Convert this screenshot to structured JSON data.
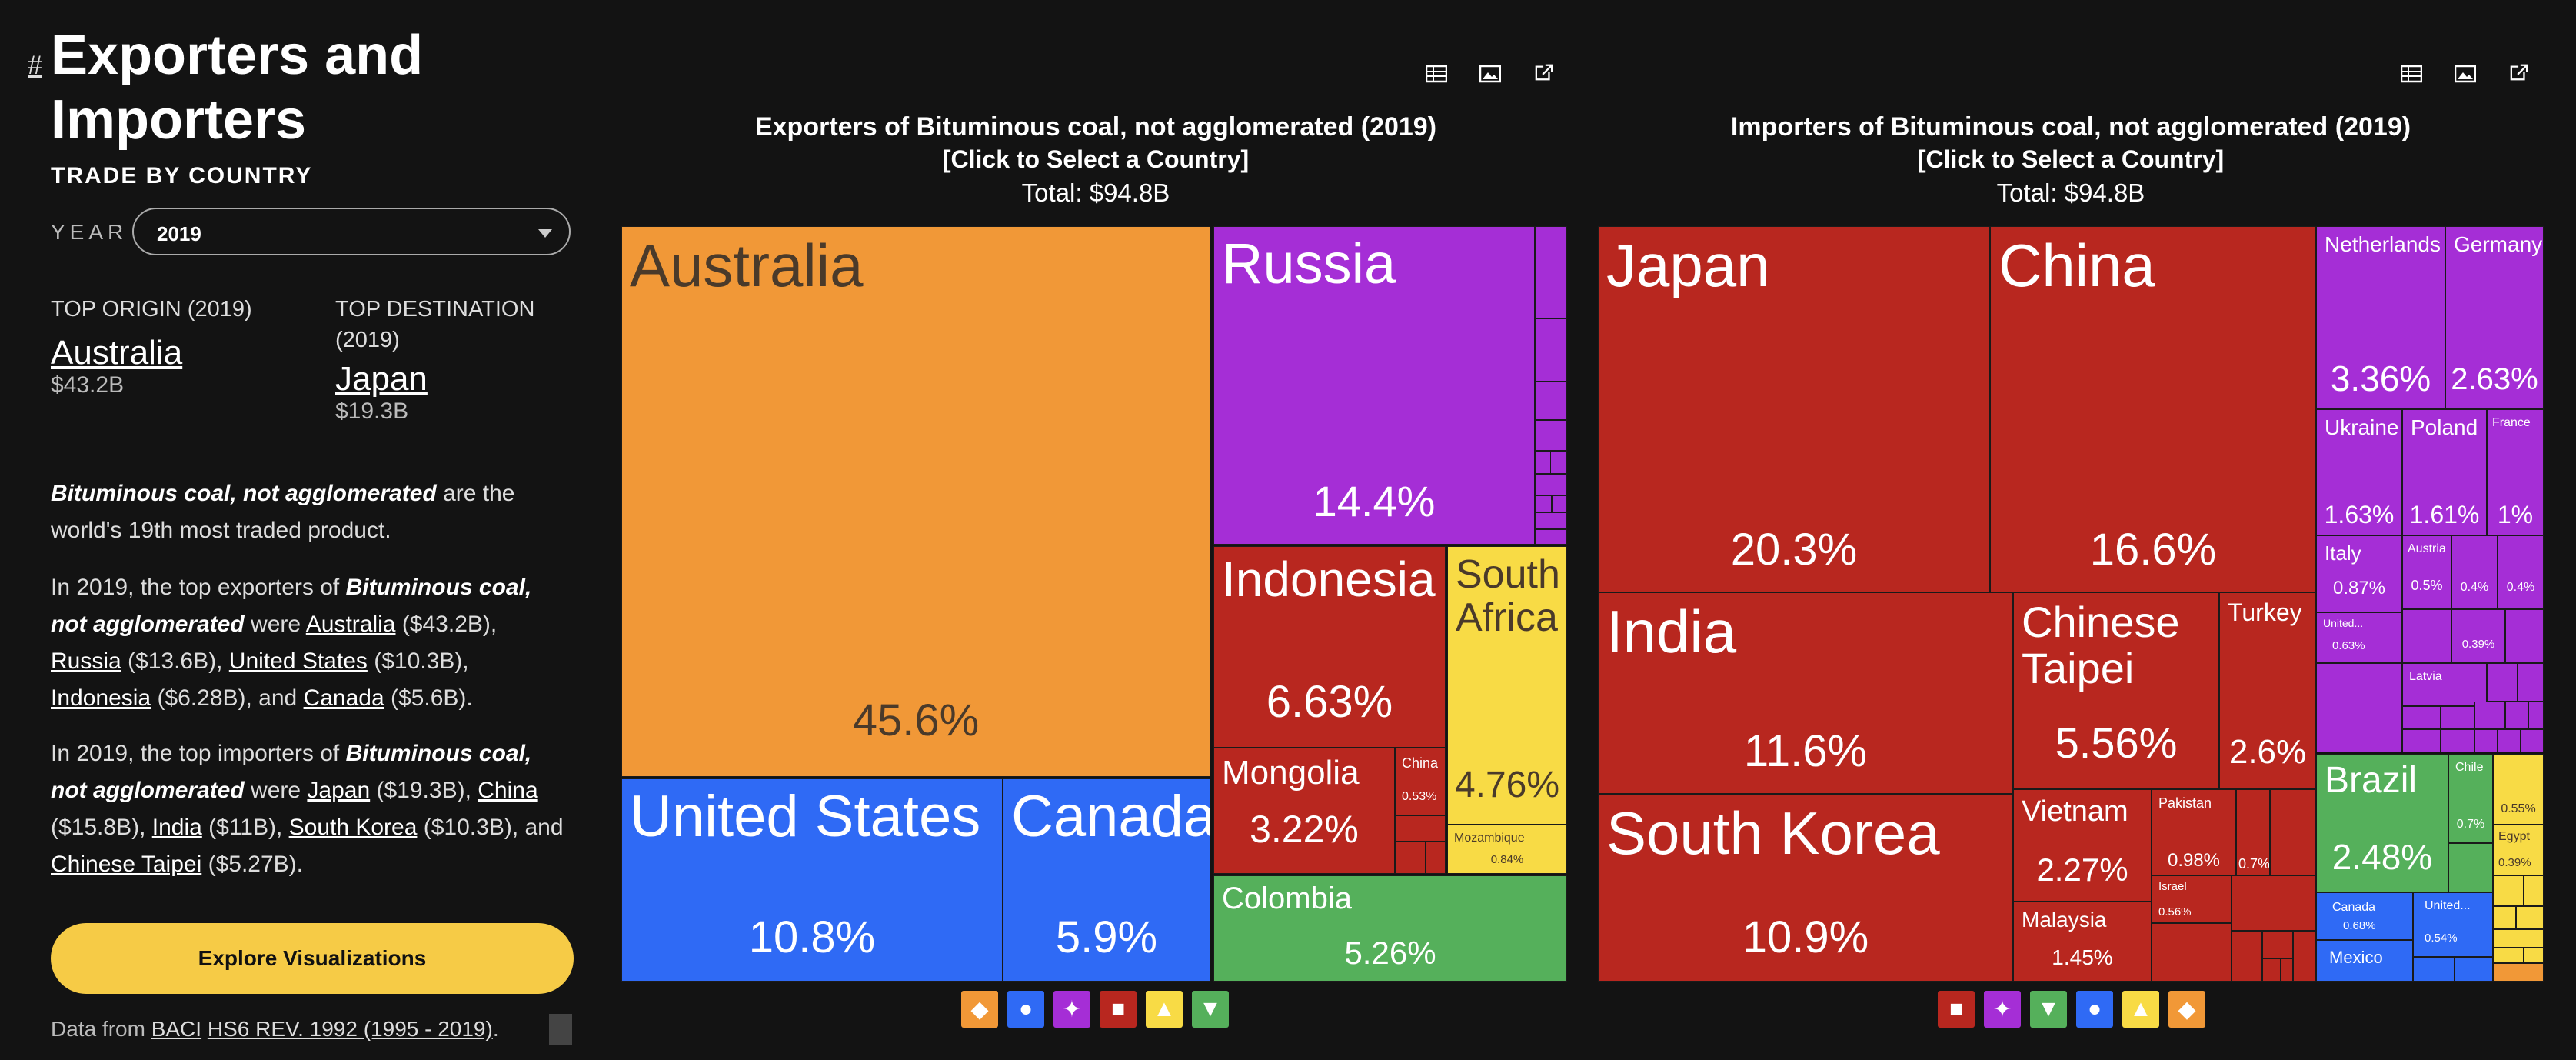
{
  "page": {
    "anchor": "#",
    "title": "Exporters and Importers",
    "subtitle": "TRADE BY COUNTRY",
    "year_label": "YEAR",
    "year_value": "2019"
  },
  "top_origin": {
    "label": "TOP ORIGIN (2019)",
    "country": "Australia",
    "amount": "$43.2B"
  },
  "top_destination": {
    "label": "TOP DESTINATION (2019)",
    "country": "Japan",
    "amount": "$19.3B"
  },
  "description": {
    "p1_product": "Bituminous coal, not agglomerated",
    "p1_text": "are the world's 19th most traded product.",
    "p2_intro": "In 2019, the top exporters of",
    "p2_product": "Bituminous coal, not agglomerated",
    "p2_were": "were",
    "p2_items": [
      {
        "name": "Australia",
        "val": "($43.2B), "
      },
      {
        "name": "Russia",
        "val": "($13.6B), "
      },
      {
        "name": "United States",
        "val": "($10.3B), "
      },
      {
        "name": "Indonesia",
        "val": "($6.28B), and "
      },
      {
        "name": "Canada",
        "val": "($5.6B)."
      }
    ],
    "p3_intro": "In 2019, the top importers of",
    "p3_product": "Bituminous coal, not agglomerated",
    "p3_were": "were",
    "p3_items": [
      {
        "name": "Japan",
        "val": "($19.3B), "
      },
      {
        "name": "China",
        "val": "($15.8B), "
      },
      {
        "name": "India",
        "val": "($11B), "
      },
      {
        "name": "South Korea",
        "val": "($10.3B), and "
      },
      {
        "name": "Chinese Taipei",
        "val": "($5.27B)."
      }
    ]
  },
  "explore_button": "Explore Visualizations",
  "source": {
    "prefix": "Data from ",
    "link1": "BACI",
    "link2": "HS6 REV. 1992 (1995 - 2019)",
    "suffix": "."
  },
  "toolbar_icons": [
    "table-icon",
    "image-icon",
    "share-icon"
  ],
  "exporters_chart": {
    "title": "Exporters of Bituminous coal, not agglomerated (2019)",
    "subtitle": "[Click to Select a Country]",
    "total": "Total: $94.8B"
  },
  "importers_chart": {
    "title": "Importers of Bituminous coal, not agglomerated (2019)",
    "subtitle": "[Click to Select a Country]",
    "total": "Total: $94.8B"
  },
  "colors": {
    "oceania": "#f19837",
    "europe": "#a52ed6",
    "asia": "#b8271f",
    "north_america": "#2f6af5",
    "africa": "#f8db45",
    "south_america": "#55b05b",
    "button": "#f6cb46",
    "background": "#131313"
  },
  "chart_data": [
    {
      "type": "treemap",
      "title": "Exporters of Bituminous coal, not agglomerated (2019)",
      "total": "$94.8B",
      "items": [
        {
          "name": "Australia",
          "share": 45.6,
          "label": "45.6%",
          "region": "oceania"
        },
        {
          "name": "Russia",
          "share": 14.4,
          "label": "14.4%",
          "region": "europe"
        },
        {
          "name": "United States",
          "share": 10.8,
          "label": "10.8%",
          "region": "north_america"
        },
        {
          "name": "Indonesia",
          "share": 6.63,
          "label": "6.63%",
          "region": "asia"
        },
        {
          "name": "Canada",
          "share": 5.9,
          "label": "5.9%",
          "region": "north_america"
        },
        {
          "name": "Colombia",
          "share": 5.26,
          "label": "5.26%",
          "region": "south_america"
        },
        {
          "name": "South Africa",
          "share": 4.76,
          "label": "4.76%",
          "region": "africa"
        },
        {
          "name": "Mongolia",
          "share": 3.22,
          "label": "3.22%",
          "region": "asia"
        },
        {
          "name": "Mozambique",
          "share": 0.84,
          "label": "0.84%",
          "region": "africa"
        },
        {
          "name": "China",
          "share": 0.53,
          "label": "0.53%",
          "region": "asia"
        }
      ],
      "legend": [
        "oceania",
        "north_america",
        "europe",
        "asia",
        "africa",
        "south_america"
      ]
    },
    {
      "type": "treemap",
      "title": "Importers of Bituminous coal, not agglomerated (2019)",
      "total": "$94.8B",
      "items": [
        {
          "name": "Japan",
          "share": 20.3,
          "label": "20.3%",
          "region": "asia"
        },
        {
          "name": "China",
          "share": 16.6,
          "label": "16.6%",
          "region": "asia"
        },
        {
          "name": "India",
          "share": 11.6,
          "label": "11.6%",
          "region": "asia"
        },
        {
          "name": "South Korea",
          "share": 10.9,
          "label": "10.9%",
          "region": "asia"
        },
        {
          "name": "Chinese Taipei",
          "share": 5.56,
          "label": "5.56%",
          "region": "asia"
        },
        {
          "name": "Netherlands",
          "share": 3.36,
          "label": "3.36%",
          "region": "europe"
        },
        {
          "name": "Germany",
          "share": 2.63,
          "label": "2.63%",
          "region": "europe"
        },
        {
          "name": "Turkey",
          "share": 2.6,
          "label": "2.6%",
          "region": "asia"
        },
        {
          "name": "Brazil",
          "share": 2.48,
          "label": "2.48%",
          "region": "south_america"
        },
        {
          "name": "Vietnam",
          "share": 2.27,
          "label": "2.27%",
          "region": "asia"
        },
        {
          "name": "Ukraine",
          "share": 1.63,
          "label": "1.63%",
          "region": "europe"
        },
        {
          "name": "Poland",
          "share": 1.61,
          "label": "1.61%",
          "region": "europe"
        },
        {
          "name": "Malaysia",
          "share": 1.45,
          "label": "1.45%",
          "region": "asia"
        },
        {
          "name": "France",
          "share": 1.0,
          "label": "1%",
          "region": "europe"
        },
        {
          "name": "Pakistan",
          "share": 0.98,
          "label": "0.98%",
          "region": "asia"
        },
        {
          "name": "Italy",
          "share": 0.87,
          "label": "0.87%",
          "region": "europe"
        },
        {
          "name": "Chile",
          "share": 0.7,
          "label": "0.7%",
          "region": "south_america"
        },
        {
          "name": "",
          "share": 0.7,
          "label": "0.7%",
          "region": "asia"
        },
        {
          "name": "Canada",
          "share": 0.68,
          "label": "0.68%",
          "region": "north_america"
        },
        {
          "name": "United...",
          "share": 0.63,
          "label": "0.63%",
          "region": "europe"
        },
        {
          "name": "Israel",
          "share": 0.56,
          "label": "0.56%",
          "region": "asia"
        },
        {
          "name": "",
          "share": 0.55,
          "label": "0.55%",
          "region": "africa"
        },
        {
          "name": "United...",
          "share": 0.54,
          "label": "0.54%",
          "region": "north_america"
        },
        {
          "name": "Austria",
          "share": 0.5,
          "label": "0.5%",
          "region": "europe"
        },
        {
          "name": "",
          "share": 0.4,
          "label": "0.4%",
          "region": "europe"
        },
        {
          "name": "",
          "share": 0.4,
          "label": "0.4%",
          "region": "europe"
        },
        {
          "name": "Egypt",
          "share": 0.39,
          "label": "0.39%",
          "region": "africa"
        },
        {
          "name": "",
          "share": 0.39,
          "label": "0.39%",
          "region": "europe"
        },
        {
          "name": "Latvia",
          "share": null,
          "label": "",
          "region": "europe"
        },
        {
          "name": "Mexico",
          "share": null,
          "label": "",
          "region": "north_america"
        }
      ],
      "legend": [
        "asia",
        "europe",
        "south_america",
        "north_america",
        "africa",
        "oceania"
      ]
    }
  ]
}
